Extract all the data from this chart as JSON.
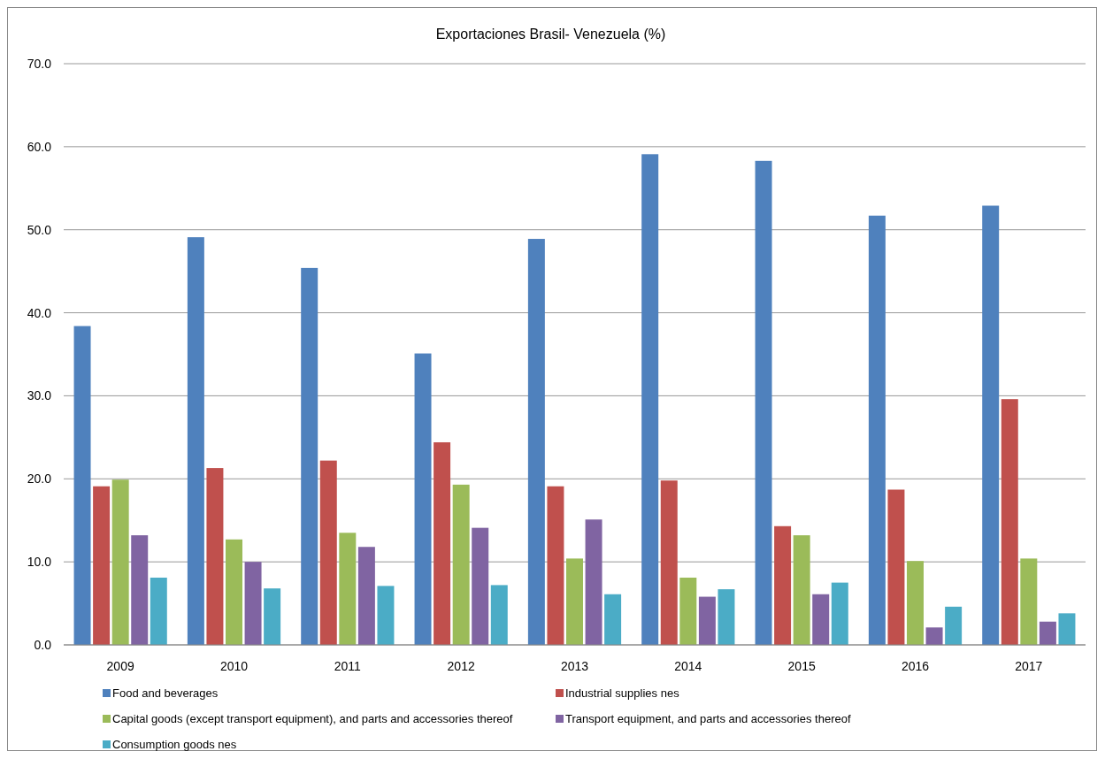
{
  "chart_data": {
    "type": "bar",
    "title": "Exportaciones Brasil- Venezuela (%)",
    "categories": [
      "2009",
      "2010",
      "2011",
      "2012",
      "2013",
      "2014",
      "2015",
      "2016",
      "2017"
    ],
    "series": [
      {
        "name": "Food and beverages",
        "color": "#4f81bd",
        "values": [
          38.4,
          49.1,
          45.4,
          35.1,
          48.9,
          59.1,
          58.3,
          51.7,
          52.9
        ]
      },
      {
        "name": "Industrial supplies nes",
        "color": "#c0504d",
        "values": [
          19.1,
          21.3,
          22.2,
          24.4,
          19.1,
          19.8,
          14.3,
          18.7,
          29.6
        ]
      },
      {
        "name": "Capital goods (except transport equipment), and parts and accessories thereof",
        "color": "#9bbb59",
        "values": [
          19.9,
          12.7,
          13.5,
          19.3,
          10.4,
          8.1,
          13.2,
          10.1,
          10.4
        ]
      },
      {
        "name": "Transport equipment, and parts and accessories thereof",
        "color": "#8064a2",
        "values": [
          13.2,
          10.0,
          11.8,
          14.1,
          15.1,
          5.8,
          6.1,
          2.1,
          2.8
        ]
      },
      {
        "name": "Consumption goods nes",
        "color": "#4bacc6",
        "values": [
          8.1,
          6.8,
          7.1,
          7.2,
          6.1,
          6.7,
          7.5,
          4.6,
          3.8
        ]
      }
    ],
    "ylim": [
      0,
      70
    ],
    "yticks": [
      {
        "value": 0,
        "label": "0.0"
      },
      {
        "value": 10,
        "label": "10.0"
      },
      {
        "value": 20,
        "label": "20.0"
      },
      {
        "value": 30,
        "label": "30.0"
      },
      {
        "value": 40,
        "label": "40.0"
      },
      {
        "value": 50,
        "label": "50.0"
      },
      {
        "value": 60,
        "label": "60.0"
      },
      {
        "value": 70,
        "label": "70.0"
      }
    ],
    "grid": "y",
    "legend": "bottom"
  }
}
